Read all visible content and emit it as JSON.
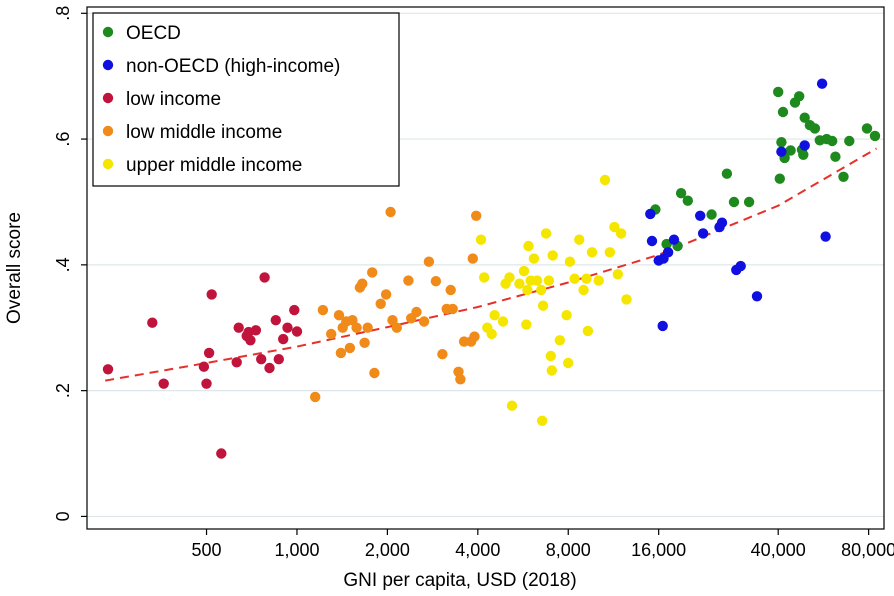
{
  "chart_data": {
    "type": "scatter",
    "title": "",
    "xlabel": "GNI per capita, USD (2018)",
    "ylabel": "Overall score",
    "x_scale": "log",
    "xlim": [
      200,
      90000
    ],
    "ylim": [
      -0.02,
      0.81
    ],
    "x_ticks": [
      500,
      1000,
      2000,
      4000,
      8000,
      16000,
      40000,
      80000
    ],
    "x_tick_labels": [
      "500",
      "1,000",
      "2,000",
      "4,000",
      "8,000",
      "16,000",
      "40,000",
      "80,000"
    ],
    "y_ticks": [
      0,
      0.2,
      0.4,
      0.6,
      0.8
    ],
    "y_tick_labels": [
      "0",
      ".2",
      ".4",
      ".6",
      ".8"
    ],
    "grid": true,
    "legend_position": "top-left",
    "fit_line": {
      "style": "dashed",
      "color": "#e8302a",
      "x": [
        230,
        500,
        1000,
        2000,
        4000,
        8000,
        16000,
        40000,
        85000
      ],
      "y": [
        0.216,
        0.244,
        0.27,
        0.301,
        0.333,
        0.372,
        0.416,
        0.494,
        0.585
      ]
    },
    "series": [
      {
        "name": "OECD",
        "color": "#1e8a1e",
        "points": [
          [
            15600,
            0.488
          ],
          [
            19000,
            0.514
          ],
          [
            20000,
            0.502
          ],
          [
            17000,
            0.433
          ],
          [
            18500,
            0.43
          ],
          [
            24000,
            0.48
          ],
          [
            27000,
            0.545
          ],
          [
            28500,
            0.5
          ],
          [
            32000,
            0.5
          ],
          [
            40000,
            0.675
          ],
          [
            41500,
            0.643
          ],
          [
            45500,
            0.658
          ],
          [
            47000,
            0.668
          ],
          [
            49000,
            0.634
          ],
          [
            51000,
            0.622
          ],
          [
            53000,
            0.617
          ],
          [
            48000,
            0.583
          ],
          [
            44000,
            0.582
          ],
          [
            42000,
            0.57
          ],
          [
            40500,
            0.537
          ],
          [
            41000,
            0.595
          ],
          [
            58000,
            0.6
          ],
          [
            60500,
            0.597
          ],
          [
            62000,
            0.572
          ],
          [
            66000,
            0.54
          ],
          [
            69000,
            0.597
          ],
          [
            79000,
            0.617
          ],
          [
            84000,
            0.605
          ],
          [
            55000,
            0.598
          ],
          [
            48500,
            0.575
          ]
        ]
      },
      {
        "name": "non-OECD (high-income)",
        "color": "#1010e0",
        "points": [
          [
            15000,
            0.481
          ],
          [
            15200,
            0.438
          ],
          [
            16000,
            0.407
          ],
          [
            16600,
            0.41
          ],
          [
            17200,
            0.42
          ],
          [
            18000,
            0.44
          ],
          [
            16500,
            0.303
          ],
          [
            22000,
            0.478
          ],
          [
            22500,
            0.45
          ],
          [
            25500,
            0.46
          ],
          [
            26000,
            0.467
          ],
          [
            29000,
            0.392
          ],
          [
            30000,
            0.398
          ],
          [
            34000,
            0.35
          ],
          [
            41000,
            0.58
          ],
          [
            49000,
            0.59
          ],
          [
            56000,
            0.688
          ],
          [
            57500,
            0.445
          ]
        ]
      },
      {
        "name": "low income",
        "color": "#c0143c",
        "points": [
          [
            235,
            0.234
          ],
          [
            330,
            0.308
          ],
          [
            360,
            0.211
          ],
          [
            490,
            0.238
          ],
          [
            500,
            0.211
          ],
          [
            510,
            0.26
          ],
          [
            520,
            0.353
          ],
          [
            560,
            0.1
          ],
          [
            630,
            0.245
          ],
          [
            640,
            0.3
          ],
          [
            680,
            0.287
          ],
          [
            690,
            0.293
          ],
          [
            700,
            0.28
          ],
          [
            730,
            0.296
          ],
          [
            760,
            0.25
          ],
          [
            780,
            0.38
          ],
          [
            810,
            0.236
          ],
          [
            850,
            0.312
          ],
          [
            870,
            0.25
          ],
          [
            900,
            0.282
          ],
          [
            930,
            0.3
          ],
          [
            980,
            0.328
          ],
          [
            1000,
            0.294
          ]
        ]
      },
      {
        "name": "low middle income",
        "color": "#f08a19",
        "points": [
          [
            1150,
            0.19
          ],
          [
            1220,
            0.328
          ],
          [
            1300,
            0.29
          ],
          [
            1380,
            0.32
          ],
          [
            1420,
            0.3
          ],
          [
            1400,
            0.26
          ],
          [
            1460,
            0.31
          ],
          [
            1500,
            0.268
          ],
          [
            1530,
            0.312
          ],
          [
            1580,
            0.3
          ],
          [
            1620,
            0.364
          ],
          [
            1650,
            0.37
          ],
          [
            1680,
            0.276
          ],
          [
            1720,
            0.3
          ],
          [
            1780,
            0.388
          ],
          [
            1810,
            0.228
          ],
          [
            1900,
            0.338
          ],
          [
            1980,
            0.353
          ],
          [
            2050,
            0.484
          ],
          [
            2080,
            0.312
          ],
          [
            2150,
            0.3
          ],
          [
            2350,
            0.375
          ],
          [
            2400,
            0.315
          ],
          [
            2500,
            0.325
          ],
          [
            2650,
            0.31
          ],
          [
            2750,
            0.405
          ],
          [
            2900,
            0.374
          ],
          [
            3050,
            0.258
          ],
          [
            3150,
            0.33
          ],
          [
            3250,
            0.36
          ],
          [
            3450,
            0.23
          ],
          [
            3500,
            0.218
          ],
          [
            3600,
            0.278
          ],
          [
            3800,
            0.278
          ],
          [
            3900,
            0.286
          ],
          [
            3950,
            0.478
          ],
          [
            3850,
            0.41
          ],
          [
            3300,
            0.33
          ]
        ]
      },
      {
        "name": "upper middle income",
        "color": "#f5e600",
        "points": [
          [
            4100,
            0.44
          ],
          [
            4200,
            0.38
          ],
          [
            4300,
            0.3
          ],
          [
            4450,
            0.29
          ],
          [
            4550,
            0.32
          ],
          [
            4850,
            0.31
          ],
          [
            4950,
            0.37
          ],
          [
            5100,
            0.38
          ],
          [
            5200,
            0.176
          ],
          [
            5500,
            0.37
          ],
          [
            5700,
            0.39
          ],
          [
            5800,
            0.305
          ],
          [
            5850,
            0.36
          ],
          [
            5900,
            0.43
          ],
          [
            6000,
            0.375
          ],
          [
            6150,
            0.41
          ],
          [
            6300,
            0.375
          ],
          [
            6500,
            0.36
          ],
          [
            6550,
            0.152
          ],
          [
            6600,
            0.335
          ],
          [
            6750,
            0.45
          ],
          [
            6900,
            0.375
          ],
          [
            7000,
            0.255
          ],
          [
            7050,
            0.232
          ],
          [
            7100,
            0.415
          ],
          [
            7500,
            0.28
          ],
          [
            7900,
            0.32
          ],
          [
            8000,
            0.244
          ],
          [
            8100,
            0.405
          ],
          [
            8400,
            0.378
          ],
          [
            8700,
            0.44
          ],
          [
            9000,
            0.36
          ],
          [
            9200,
            0.378
          ],
          [
            9300,
            0.295
          ],
          [
            9600,
            0.42
          ],
          [
            10100,
            0.375
          ],
          [
            10600,
            0.535
          ],
          [
            11000,
            0.42
          ],
          [
            11400,
            0.46
          ],
          [
            11700,
            0.385
          ],
          [
            12000,
            0.45
          ],
          [
            12500,
            0.345
          ]
        ]
      }
    ]
  }
}
